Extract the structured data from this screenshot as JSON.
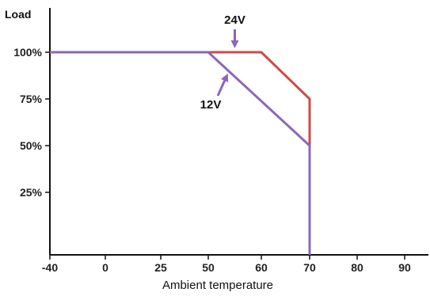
{
  "chart_data": {
    "type": "line",
    "title": "",
    "xlabel": "Ambient temperature",
    "ylabel": "Load",
    "x_ticks": [
      {
        "value": -40,
        "label": "-40"
      },
      {
        "value": 0,
        "label": "0"
      },
      {
        "value": 25,
        "label": "25"
      },
      {
        "value": 50,
        "label": "50"
      },
      {
        "value": 60,
        "label": "60"
      },
      {
        "value": 70,
        "label": "70"
      },
      {
        "value": 80,
        "label": "80"
      },
      {
        "value": 90,
        "label": "90"
      }
    ],
    "y_ticks": [
      {
        "value": 100,
        "label": "100%"
      },
      {
        "value": 75,
        "label": "75%"
      },
      {
        "value": 50,
        "label": "50%"
      },
      {
        "value": 25,
        "label": "25%"
      }
    ],
    "ylim": [
      0,
      100
    ],
    "grid": false,
    "series": [
      {
        "name": "24V",
        "color": "#cc4a4a",
        "points": [
          {
            "x": -40,
            "y": 100
          },
          {
            "x": 60,
            "y": 100
          },
          {
            "x": 70,
            "y": 75
          },
          {
            "x": 70,
            "y": 50
          }
        ]
      },
      {
        "name": "12V",
        "color": "#8b68b8",
        "points": [
          {
            "x": -40,
            "y": 100
          },
          {
            "x": 50,
            "y": 100
          },
          {
            "x": 70,
            "y": 50
          },
          {
            "x": 70,
            "y": 0
          }
        ]
      }
    ],
    "annotations": [
      {
        "label": "24V",
        "series": "24V",
        "points_to": {
          "x": 55,
          "y": 100
        }
      },
      {
        "label": "12V",
        "series": "12V",
        "points_to": {
          "x": 55,
          "y": 90
        }
      }
    ],
    "arrow_color": "#8b68b8",
    "axis_color": "#111111"
  }
}
